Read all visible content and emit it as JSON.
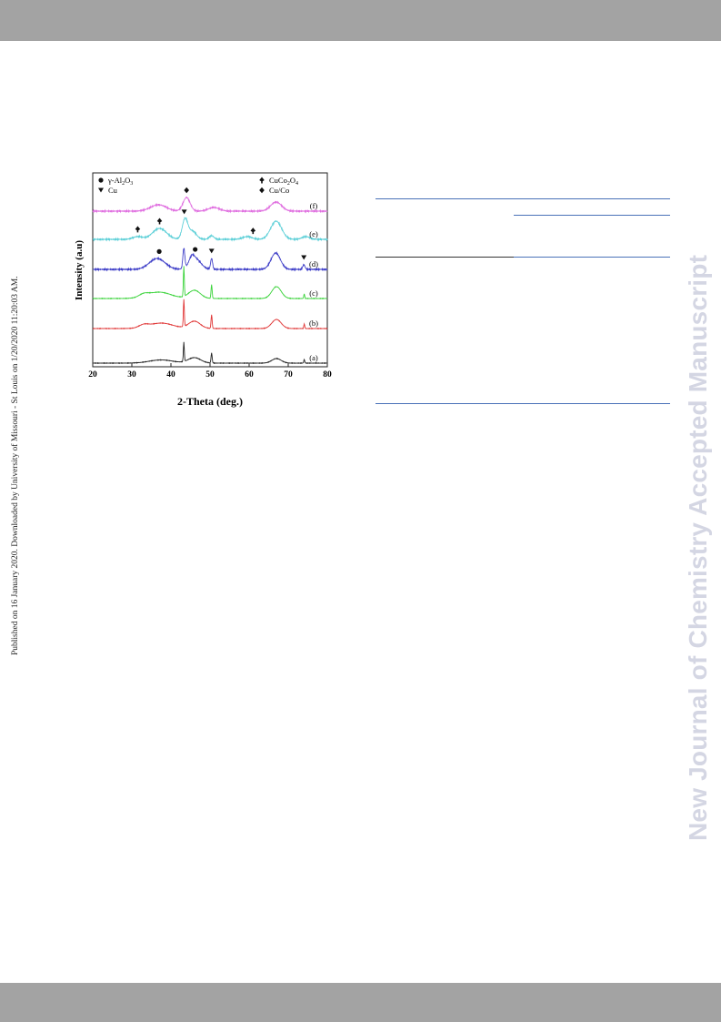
{
  "side_text": "Published on 16 January 2020. Downloaded by University of Missouri - St Louis on 1/20/2020 11:20:03 AM.",
  "watermark": "New Journal of Chemistry Accepted Manuscript",
  "colors": {
    "header_bar": "#a3a3a3",
    "watermark": "#d4d6e3",
    "rule": "#4a72b8"
  },
  "chart_data": {
    "type": "line",
    "xlabel": "2-Theta (deg.)",
    "ylabel": "Intensity (a.u)",
    "xlim": [
      20,
      80
    ],
    "xticks": [
      20,
      30,
      40,
      50,
      60,
      70,
      80
    ],
    "grid": false,
    "legend": [
      {
        "marker": "circle",
        "label": "γ-Al2O3",
        "position": "top-left"
      },
      {
        "marker": "triangle-down",
        "label": "Cu",
        "position": "top-left"
      },
      {
        "marker": "spade",
        "label": "CuCo2O4",
        "position": "top-right"
      },
      {
        "marker": "diamond",
        "label": "Cu/Co",
        "position": "top-right"
      }
    ],
    "series": [
      {
        "name": "(a)",
        "color": "#222222",
        "offset": 0,
        "peaks": [
          [
            37.5,
            3,
            3.5
          ],
          [
            43.3,
            0.12,
            21
          ],
          [
            46,
            1.6,
            6
          ],
          [
            50.4,
            0.14,
            11
          ],
          [
            67,
            1.2,
            5
          ],
          [
            74.1,
            0.12,
            4
          ]
        ]
      },
      {
        "name": "(b)",
        "color": "#e03535",
        "offset": 1,
        "peaks": [
          [
            33,
            1.2,
            3
          ],
          [
            37.5,
            3,
            6
          ],
          [
            43.3,
            0.12,
            30
          ],
          [
            46,
            1.5,
            8
          ],
          [
            50.4,
            0.14,
            15
          ],
          [
            67,
            1.2,
            10
          ],
          [
            74.1,
            0.12,
            5
          ]
        ]
      },
      {
        "name": "(c)",
        "color": "#3ad33a",
        "offset": 2,
        "peaks": [
          [
            33,
            1.2,
            3
          ],
          [
            37,
            3,
            7
          ],
          [
            43.3,
            0.12,
            33
          ],
          [
            46,
            1.5,
            9
          ],
          [
            50.4,
            0.14,
            15
          ],
          [
            67,
            1.2,
            13
          ],
          [
            74.1,
            0.12,
            5
          ]
        ]
      },
      {
        "name": "(d)",
        "color": "#4040c8",
        "offset": 3,
        "peaks": [
          [
            36.5,
            2,
            12
          ],
          [
            43.3,
            0.25,
            22
          ],
          [
            45.3,
            0.6,
            6
          ],
          [
            46.2,
            1.4,
            12
          ],
          [
            50.4,
            0.25,
            12
          ],
          [
            66.8,
            1.2,
            18
          ],
          [
            74,
            0.3,
            5
          ]
        ]
      },
      {
        "name": "(e)",
        "color": "#5fd0d8",
        "offset": 4,
        "peaks": [
          [
            31.5,
            1.2,
            3
          ],
          [
            37.1,
            1.8,
            12
          ],
          [
            43.6,
            0.7,
            22
          ],
          [
            45.5,
            1,
            9
          ],
          [
            50.4,
            0.6,
            4
          ],
          [
            59.5,
            1.2,
            3
          ],
          [
            66.9,
            1.4,
            20
          ],
          [
            74.5,
            1,
            3
          ]
        ]
      },
      {
        "name": "(f)",
        "color": "#e070e0",
        "offset": 5,
        "peaks": [
          [
            36.8,
            2,
            7
          ],
          [
            44,
            0.9,
            15
          ],
          [
            51,
            1.4,
            4
          ],
          [
            66.9,
            1.4,
            10
          ]
        ]
      }
    ],
    "annotations": [
      {
        "marker": "diamond",
        "x": 44,
        "series": "(f)"
      },
      {
        "marker": "spade",
        "x": 31.5,
        "series": "(e)"
      },
      {
        "marker": "spade",
        "x": 37.1,
        "series": "(e)"
      },
      {
        "marker": "triangle-down",
        "x": 43.4,
        "series": "(e)"
      },
      {
        "marker": "spade",
        "x": 61,
        "series": "(e)"
      },
      {
        "marker": "circle",
        "x": 37,
        "series": "(d)"
      },
      {
        "marker": "circle",
        "x": 46.2,
        "series": "(d)"
      },
      {
        "marker": "triangle-down",
        "x": 50.4,
        "series": "(d)"
      },
      {
        "marker": "triangle-down",
        "x": 74,
        "series": "(d)"
      }
    ]
  }
}
